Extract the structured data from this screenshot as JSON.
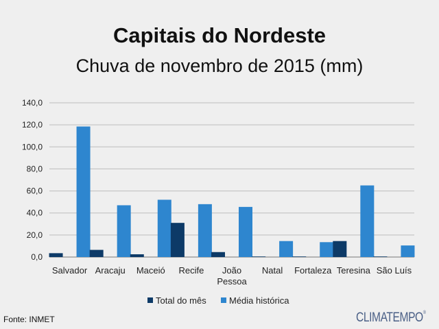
{
  "title": "Capitais do Nordeste",
  "subtitle": "Chuva de novembro de 2015 (mm)",
  "source": "Fonte: INMET",
  "brand": "CLIMATEMPO",
  "brand_mark": "®",
  "chart_data": {
    "type": "bar",
    "title": "Capitais do Nordeste",
    "subtitle": "Chuva de novembro de 2015 (mm)",
    "categories": [
      [
        "Salvador"
      ],
      [
        "Aracaju"
      ],
      [
        "Maceió"
      ],
      [
        "Recife"
      ],
      [
        "João",
        "Pessoa"
      ],
      [
        "Natal"
      ],
      [
        "Fortaleza"
      ],
      [
        "Teresina"
      ],
      [
        "São Luís"
      ]
    ],
    "series": [
      {
        "name": "Total do mês",
        "color": "#0d3a67",
        "values": [
          3.5,
          6.5,
          2.5,
          31.0,
          4.5,
          0.5,
          0.5,
          14.5,
          0.5
        ]
      },
      {
        "name": "Média histórica",
        "color": "#2e86cf",
        "values": [
          118.5,
          47.0,
          52.0,
          48.0,
          45.5,
          14.5,
          13.5,
          65.0,
          10.5
        ]
      }
    ],
    "ylim": [
      0,
      140
    ],
    "yticks": [
      "0,0",
      "20,0",
      "40,0",
      "60,0",
      "80,0",
      "100,0",
      "120,0",
      "140,0"
    ],
    "grid": true,
    "legend": "bottom"
  }
}
